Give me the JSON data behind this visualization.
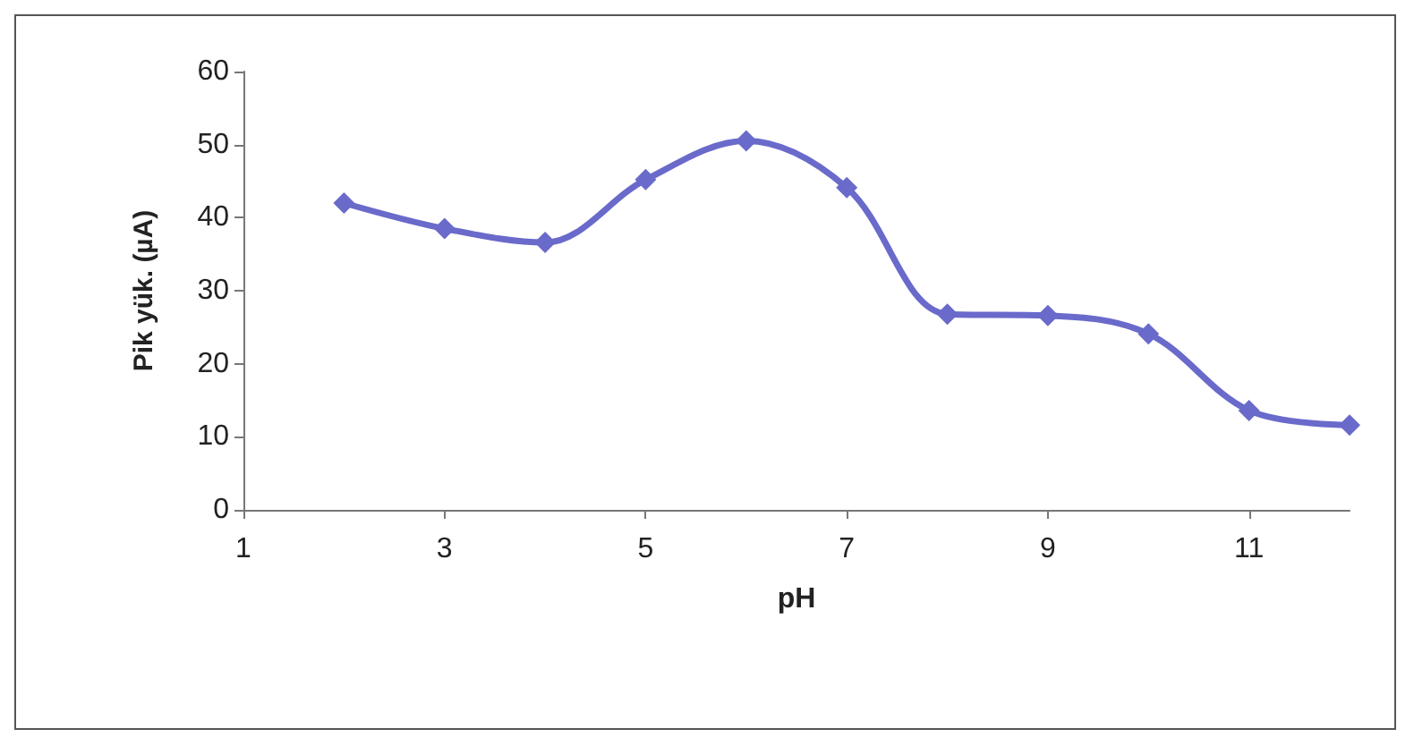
{
  "chart_data": {
    "type": "line",
    "xlabel": "pH",
    "ylabel": "Pik yük. (µA)",
    "x": [
      2,
      3,
      4,
      5,
      6,
      7,
      8,
      9,
      10,
      11,
      12
    ],
    "series": [
      {
        "color": "#6a6acb",
        "values": [
          42,
          38.5,
          36.6,
          45.2,
          50.5,
          44.1,
          26.8,
          26.6,
          24.1,
          13.6,
          11.6
        ]
      }
    ],
    "xlim": [
      1,
      12
    ],
    "xticks": [
      1,
      3,
      5,
      7,
      9,
      11
    ],
    "ylim": [
      0,
      60
    ],
    "yticks": [
      0,
      10,
      20,
      30,
      40,
      50,
      60
    ],
    "grid": false,
    "marker": "diamond",
    "line_style": "solid"
  }
}
